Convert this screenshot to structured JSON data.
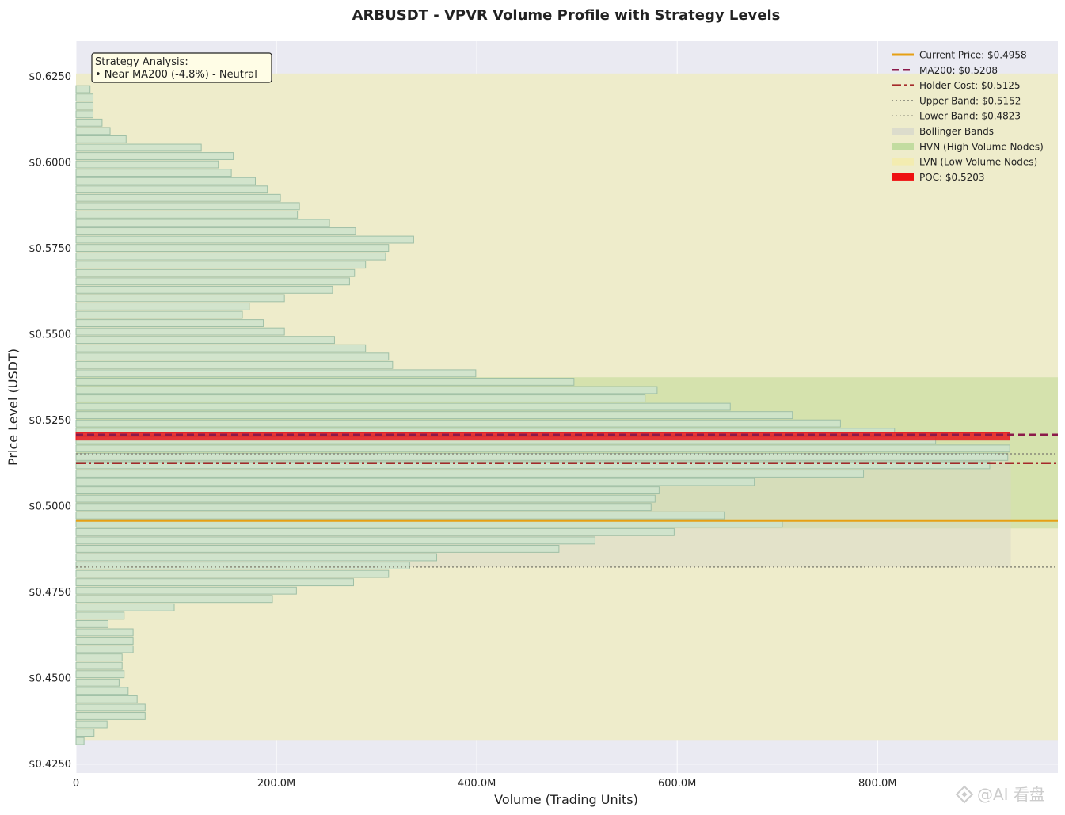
{
  "chart_data": {
    "type": "bar",
    "orientation": "horizontal",
    "title": "ARBUSDT - VPVR Volume Profile with Strategy Levels",
    "xlabel": "Volume (Trading Units)",
    "ylabel": "Price Level (USDT)",
    "xlim": [
      0,
      980
    ],
    "ylim": [
      0.4224,
      0.6352
    ],
    "x_unit": "M",
    "x_ticks": [
      0,
      200,
      400,
      600,
      800
    ],
    "x_tick_labels": [
      "0",
      "200.0M",
      "400.0M",
      "600.0M",
      "800.0M"
    ],
    "y_ticks": [
      0.425,
      0.45,
      0.475,
      0.5,
      0.525,
      0.55,
      0.575,
      0.6,
      0.625
    ],
    "y_tick_labels": [
      "$0.4250",
      "$0.4500",
      "$0.4750",
      "$0.5000",
      "$0.5250",
      "$0.5500",
      "$0.5750",
      "$0.6000",
      "$0.6250"
    ],
    "bar_price_start": 0.4317,
    "bar_price_step": 0.00243,
    "volumes": [
      8,
      18,
      31,
      69,
      69,
      61,
      52,
      43,
      48,
      46,
      46,
      57,
      57,
      57,
      32,
      48,
      98,
      196,
      220,
      277,
      312,
      333,
      360,
      482,
      518,
      597,
      705,
      647,
      574,
      578,
      582,
      677,
      786,
      912,
      930,
      932,
      858,
      817,
      763,
      715,
      653,
      568,
      580,
      497,
      399,
      316,
      312,
      289,
      258,
      208,
      187,
      166,
      173,
      208,
      256,
      273,
      278,
      289,
      309,
      312,
      337,
      279,
      253,
      221,
      223,
      204,
      191,
      179,
      155,
      142,
      157,
      125,
      50,
      34,
      26,
      17,
      17,
      17,
      14
    ],
    "levels": {
      "current_price": 0.4958,
      "ma200": 0.5208,
      "holder_cost": 0.5125,
      "upper_band": 0.5152,
      "lower_band": 0.4823,
      "poc": 0.5203
    },
    "zones": {
      "lvn": [
        0.432,
        0.6258
      ],
      "hvn": [
        0.4935,
        0.5375
      ],
      "bollinger": [
        0.4823,
        0.5152
      ],
      "bollinger_xmax": 933
    },
    "legend": {
      "placement": "top-right",
      "entries": [
        {
          "key": "current",
          "label": "Current Price: $0.4958",
          "style": "line",
          "color": "#e6a015",
          "dash": "",
          "width": 3
        },
        {
          "key": "ma200",
          "label": "MA200: $0.5208",
          "style": "line",
          "color": "#8b1a4a",
          "dash": "9,5",
          "width": 2.5
        },
        {
          "key": "holder",
          "label": "Holder Cost: $0.5125",
          "style": "line",
          "color": "#a52a2a",
          "dash": "12,4,3,4",
          "width": 2.5
        },
        {
          "key": "upper",
          "label": "Upper Band: $0.5152",
          "style": "line",
          "color": "#8a8a7a",
          "dash": "2,3",
          "width": 1.5
        },
        {
          "key": "lower",
          "label": "Lower Band: $0.4823",
          "style": "line",
          "color": "#8a8a7a",
          "dash": "2,3",
          "width": 1.5
        },
        {
          "key": "boll",
          "label": "Bollinger Bands",
          "style": "patch",
          "color": "#dcdccc",
          "dash": "",
          "width": 0
        },
        {
          "key": "hvn",
          "label": "HVN (High Volume Nodes)",
          "style": "patch",
          "color": "#c2dca0",
          "dash": "",
          "width": 0
        },
        {
          "key": "lvn",
          "label": "LVN (Low Volume Nodes)",
          "style": "patch",
          "color": "#f3ecb0",
          "dash": "",
          "width": 0
        },
        {
          "key": "poc",
          "label": "POC: $0.5203",
          "style": "patch",
          "color": "#ee1111",
          "dash": "",
          "width": 0
        }
      ]
    },
    "annotation": {
      "line1": "Strategy Analysis:",
      "line2": "• Near MA200 (-4.8%) - Neutral"
    },
    "grid": true
  },
  "watermark": {
    "text": "@AI 看盘"
  },
  "colors": {
    "plot_bg": "#eaeaf2",
    "bar_fill": "#cde3cd",
    "bar_stroke": "#9fbfa6",
    "lvn_fill": "#eeeccb",
    "hvn_fill": "#b5d78a",
    "bollinger_fill": "#d8d8c8",
    "poc_color": "#e8181c",
    "annotation_bg": "#fffde6"
  }
}
